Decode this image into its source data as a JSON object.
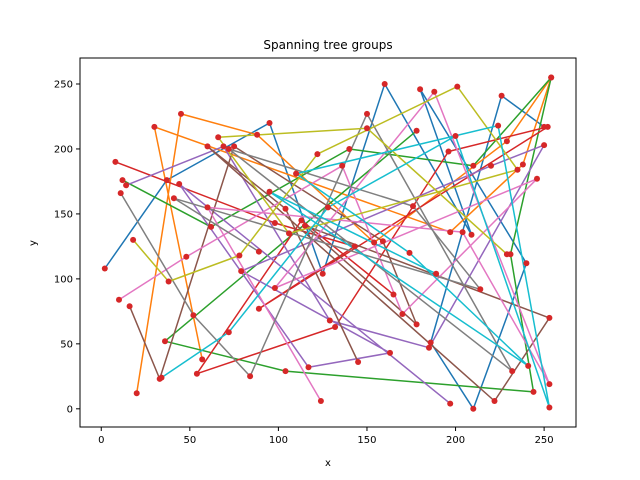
{
  "chart_data": {
    "type": "line",
    "title": "Spanning tree groups",
    "xlabel": "x",
    "ylabel": "y",
    "xlim": [
      -12,
      268
    ],
    "ylim": [
      -14,
      270
    ],
    "x_ticks": [
      0,
      50,
      100,
      150,
      200,
      250
    ],
    "y_ticks": [
      0,
      50,
      100,
      150,
      200,
      250
    ],
    "grid": false,
    "point_color": "#d62728",
    "series": [
      {
        "color": "#1f77b4",
        "x": [
          2,
          37,
          95,
          125,
          160,
          209,
          180,
          240,
          210,
          186,
          226,
          250
        ],
        "y": [
          108,
          176,
          220,
          104,
          250,
          134,
          246,
          112,
          0,
          51,
          241,
          217
        ]
      },
      {
        "color": "#ff7f0e",
        "x": [
          20,
          45,
          88,
          154,
          229,
          254,
          238,
          197,
          30,
          57
        ],
        "y": [
          12,
          227,
          211,
          128,
          206,
          255,
          188,
          136,
          217,
          38
        ]
      },
      {
        "color": "#2ca02c",
        "x": [
          12,
          62,
          140,
          210,
          254,
          231,
          244,
          104,
          36,
          178
        ],
        "y": [
          176,
          140,
          200,
          187,
          255,
          119,
          13,
          29,
          52,
          214
        ]
      },
      {
        "color": "#d62728",
        "x": [
          8,
          98,
          143,
          89,
          252,
          196,
          132,
          54,
          113,
          165
        ],
        "y": [
          190,
          143,
          125,
          77,
          217,
          198,
          63,
          27,
          145,
          88
        ]
      },
      {
        "color": "#9467bd",
        "x": [
          14,
          69,
          129,
          185,
          250,
          220,
          79,
          163,
          117,
          44,
          197
        ],
        "y": [
          172,
          202,
          68,
          47,
          203,
          187,
          106,
          43,
          32,
          173,
          4
        ]
      },
      {
        "color": "#8c564b",
        "x": [
          16,
          33,
          75,
          159,
          178,
          115,
          253,
          222,
          60,
          104,
          145
        ],
        "y": [
          79,
          23,
          202,
          129,
          65,
          141,
          70,
          6,
          202,
          154,
          36
        ]
      },
      {
        "color": "#e377c2",
        "x": [
          10,
          48,
          136,
          170,
          246,
          98,
          188,
          253,
          204,
          60,
          124
        ],
        "y": [
          84,
          117,
          187,
          73,
          177,
          93,
          244,
          19,
          136,
          155,
          6
        ]
      },
      {
        "color": "#7f7f7f",
        "x": [
          11,
          52,
          84,
          150,
          232,
          72,
          176,
          214,
          41,
          89
        ],
        "y": [
          166,
          72,
          25,
          227,
          29,
          200,
          156,
          92,
          162,
          121
        ]
      },
      {
        "color": "#bcbd22",
        "x": [
          18,
          38,
          78,
          122,
          201,
          235,
          106,
          66,
          150,
          229
        ],
        "y": [
          130,
          98,
          118,
          196,
          248,
          184,
          135,
          209,
          216,
          119
        ]
      },
      {
        "color": "#17becf",
        "x": [
          34,
          72,
          128,
          200,
          253,
          224,
          110,
          174,
          241,
          95,
          189
        ],
        "y": [
          24,
          59,
          155,
          210,
          1,
          218,
          181,
          120,
          33,
          167,
          104
        ]
      }
    ]
  }
}
